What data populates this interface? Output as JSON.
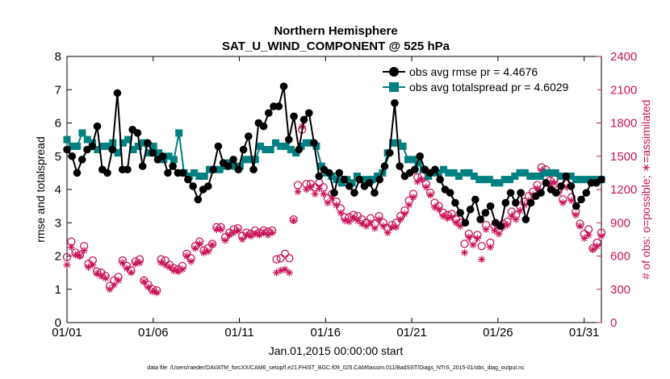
{
  "chart_data": {
    "type": "line",
    "title": "Northern Hemisphere",
    "subtitle": "SAT_U_WIND_COMPONENT @ 525 hPa",
    "xlabel": "Jan.01,2015 00:00:00 start",
    "ylabel_left": "rmse and totalspread",
    "ylabel_right": "# of obs: o=possible; ∗=assimilated",
    "footnote": "data file: /Users/raeder/DAI/ATM_forcXX/CAM6_setup/f.e21.FHIST_BGC.f09_025.CAM6assim.011/BadSST/Diags_NTrS_2015-01/obs_diag_output.nc",
    "x_ticks": [
      {
        "day": 1,
        "label": "01/01"
      },
      {
        "day": 6,
        "label": "01/06"
      },
      {
        "day": 11,
        "label": "01/11"
      },
      {
        "day": 16,
        "label": "01/16"
      },
      {
        "day": 21,
        "label": "01/21"
      },
      {
        "day": 26,
        "label": "01/26"
      },
      {
        "day": 31,
        "label": "01/31"
      }
    ],
    "xlim": [
      1,
      32
    ],
    "ylim_left": [
      0,
      8
    ],
    "ylim_right": [
      0,
      2400
    ],
    "y_ticks_left": [
      "0",
      "1",
      "2",
      "3",
      "4",
      "5",
      "6",
      "7",
      "8"
    ],
    "y_ticks_right": [
      "0",
      "300",
      "600",
      "900",
      "1200",
      "1500",
      "1800",
      "2100",
      "2400"
    ],
    "grid": false,
    "legend_position": "top-right",
    "colors": {
      "rmse": "#000000",
      "spread": "#008080",
      "obs": "#c8135a"
    },
    "series": [
      {
        "name": "obs avg rmse pr = 4.4676",
        "axis": "left",
        "marker": "circle",
        "values": [
          5.2,
          5.0,
          4.5,
          4.9,
          5.2,
          5.3,
          5.9,
          4.6,
          4.5,
          5.2,
          6.9,
          4.6,
          4.6,
          5.8,
          5.7,
          4.7,
          5.4,
          5.1,
          4.9,
          5.0,
          4.5,
          4.7,
          4.5,
          4.5,
          4.3,
          4.1,
          3.7,
          4.0,
          4.1,
          4.6,
          5.3,
          4.8,
          4.7,
          4.9,
          4.6,
          5.2,
          5.6,
          4.6,
          6.0,
          5.9,
          6.3,
          6.5,
          6.5,
          7.1,
          5.5,
          6.2,
          5.2,
          6.1,
          6.3,
          5.4,
          4.4,
          4.6,
          4.5,
          3.9,
          4.5,
          4.3,
          4.1,
          3.9,
          4.3,
          4.1,
          4.2,
          3.9,
          4.3,
          4.7,
          5.1,
          6.6,
          4.7,
          4.4,
          4.5,
          4.6,
          5.0,
          4.6,
          4.5,
          4.6,
          4.3,
          4.0,
          3.9,
          3.6,
          3.3,
          3.0,
          3.4,
          3.7,
          3.1,
          3.3,
          3.5,
          3.0,
          2.9,
          3.6,
          3.9,
          3.6,
          3.9,
          3.1,
          3.6,
          3.8,
          3.9,
          4.2,
          4.0,
          3.9,
          4.1,
          4.4,
          4.1,
          3.5,
          3.7,
          3.9,
          4.2,
          4.2,
          4.3
        ]
      },
      {
        "name": "obs avg totalspread pr = 4.6029",
        "axis": "left",
        "marker": "square",
        "values": [
          5.5,
          5.3,
          5.3,
          5.7,
          5.5,
          5.4,
          5.2,
          5.3,
          5.3,
          5.4,
          5.1,
          5.4,
          5.5,
          5.2,
          5.3,
          5.4,
          5.1,
          5.3,
          5.1,
          4.9,
          5.0,
          4.9,
          5.7,
          4.5,
          4.4,
          4.5,
          4.4,
          4.4,
          4.6,
          4.6,
          4.6,
          4.7,
          4.8,
          4.7,
          4.7,
          4.9,
          4.9,
          4.9,
          5.3,
          5.2,
          5.2,
          5.4,
          5.3,
          5.3,
          5.2,
          5.1,
          5.3,
          5.4,
          5.4,
          5.3,
          4.7,
          4.5,
          4.4,
          4.3,
          4.2,
          4.3,
          4.2,
          4.4,
          4.3,
          4.3,
          4.3,
          4.4,
          4.5,
          5.1,
          5.4,
          5.4,
          5.3,
          4.9,
          4.9,
          4.8,
          4.6,
          4.4,
          4.5,
          4.5,
          4.6,
          4.5,
          4.5,
          4.4,
          4.5,
          4.5,
          4.4,
          4.3,
          4.3,
          4.3,
          4.2,
          4.2,
          4.3,
          4.3,
          4.4,
          4.5,
          4.5,
          4.4,
          4.4,
          4.4,
          4.5,
          4.5,
          4.5,
          4.4,
          4.4,
          4.4,
          4.3,
          4.3,
          4.3,
          4.3,
          4.3,
          4.3
        ]
      },
      {
        "name": "possible",
        "axis": "right",
        "marker": "o",
        "values": [
          590,
          730,
          630,
          610,
          690,
          530,
          560,
          460,
          450,
          420,
          330,
          380,
          410,
          560,
          510,
          470,
          550,
          570,
          380,
          340,
          300,
          290,
          570,
          560,
          520,
          490,
          480,
          510,
          620,
          580,
          690,
          730,
          650,
          670,
          710,
          860,
          860,
          770,
          810,
          840,
          850,
          780,
          810,
          800,
          830,
          810,
          830,
          820,
          830,
          570,
          580,
          620,
          580,
          930,
          1240,
          1740,
          1250,
          1250,
          1220,
          1260,
          1220,
          1120,
          1160,
          1090,
          1030,
          950,
          950,
          970,
          960,
          930,
          900,
          940,
          890,
          960,
          900,
          850,
          880,
          900,
          960,
          1010,
          1100,
          1160,
          1310,
          1320,
          1250,
          1170,
          1080,
          1050,
          990,
          970,
          980,
          930,
          900,
          710,
          800,
          740,
          790,
          690,
          880,
          720,
          870,
          840,
          890,
          910,
          1000,
          970,
          1050,
          1090,
          1140,
          1180,
          1240,
          1400,
          1380,
          1280,
          1290,
          1200,
          1110,
          1250,
          1130,
          1000,
          890,
          800,
          840,
          670,
          720,
          810
        ]
      },
      {
        "name": "assimilated",
        "axis": "right",
        "marker": "*",
        "values": [
          520,
          680,
          610,
          600,
          650,
          500,
          520,
          440,
          420,
          400,
          300,
          340,
          380,
          540,
          490,
          450,
          530,
          540,
          370,
          320,
          280,
          270,
          540,
          520,
          500,
          470,
          460,
          480,
          600,
          550,
          670,
          710,
          630,
          640,
          700,
          840,
          840,
          740,
          790,
          810,
          830,
          750,
          790,
          780,
          800,
          790,
          810,
          790,
          810,
          450,
          470,
          480,
          450,
          920,
          1180,
          1770,
          1200,
          1220,
          1160,
          1210,
          1160,
          1080,
          1120,
          1060,
          990,
          920,
          910,
          940,
          920,
          890,
          870,
          900,
          850,
          930,
          870,
          810,
          860,
          860,
          930,
          980,
          1060,
          1130,
          1270,
          1290,
          1220,
          1150,
          1040,
          1020,
          960,
          940,
          950,
          900,
          870,
          630,
          770,
          700,
          760,
          570,
          840,
          680,
          830,
          800,
          860,
          880,
          960,
          930,
          1010,
          1060,
          1100,
          1150,
          1210,
          1370,
          1350,
          1250,
          1260,
          1170,
          1080,
          1220,
          1100,
          970,
          870,
          760,
          790,
          660,
          690,
          780
        ]
      }
    ]
  }
}
